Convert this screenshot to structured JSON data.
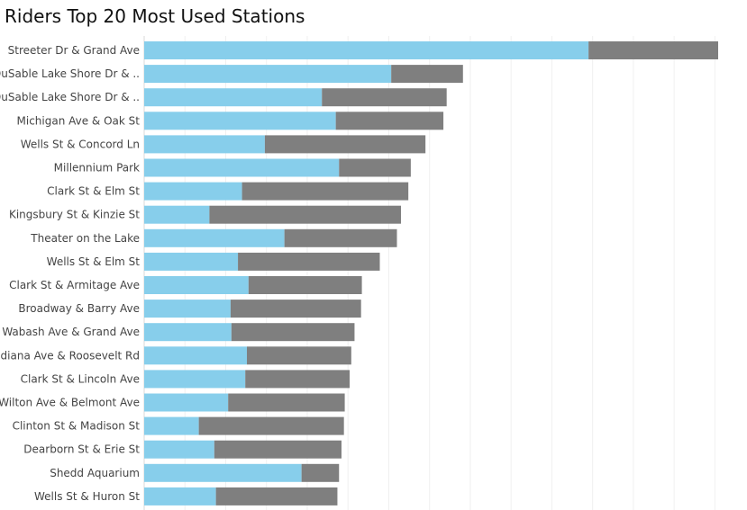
{
  "title": "Riders Top 20 Most Used Stations",
  "chart_data": {
    "type": "bar",
    "orientation": "horizontal",
    "stacked": true,
    "title": "Riders Top 20 Most Used Stations",
    "categories": [
      "Streeter Dr & Grand Ave",
      "DuSable Lake Shore Dr & ..",
      "DuSable Lake Shore Dr & ..",
      "Michigan Ave & Oak St",
      "Wells St & Concord Ln",
      "Millennium Park",
      "Clark St & Elm St",
      "Kingsbury St & Kinzie St",
      "Theater on the Lake",
      "Wells St & Elm St",
      "Clark St & Armitage Ave",
      "Broadway & Barry Ave",
      "Wabash Ave & Grand Ave",
      "Indiana Ave & Roosevelt Rd",
      "Clark St & Lincoln Ave",
      "Wilton Ave & Belmont Ave",
      "Clinton St & Madison St",
      "Dearborn St & Erie St",
      "Shedd Aquarium",
      "Wells St & Huron St"
    ],
    "series": [
      {
        "color": "#87CEEB",
        "values": [
          54500,
          30300,
          21800,
          23500,
          14800,
          23900,
          12000,
          8000,
          17200,
          11500,
          12800,
          10600,
          10700,
          12600,
          12400,
          10300,
          6700,
          8600,
          19300,
          8800
        ]
      },
      {
        "color": "#7F7F7F",
        "values": [
          15900,
          8800,
          15300,
          13200,
          19700,
          8800,
          20400,
          23500,
          13800,
          17400,
          13900,
          16000,
          15100,
          12800,
          12800,
          14300,
          17800,
          15600,
          4600,
          14900
        ]
      }
    ],
    "xlim": [
      0,
      73000
    ],
    "grid": true,
    "gridlines": [
      0,
      5000,
      10000,
      15000,
      20000,
      25000,
      30000,
      35000,
      40000,
      45000,
      50000,
      55000,
      60000,
      65000,
      70000
    ]
  }
}
